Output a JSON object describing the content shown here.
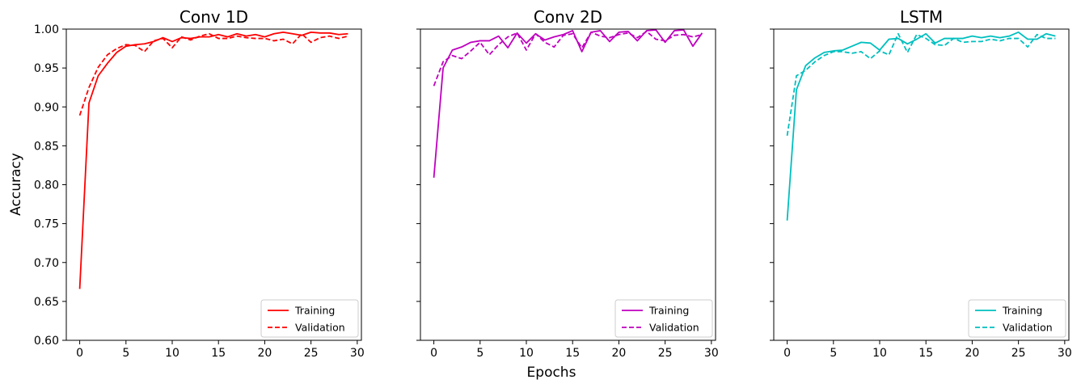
{
  "figure": {
    "xlabel": "Epochs",
    "ylabel": "Accuracy"
  },
  "chart_data": [
    {
      "type": "line",
      "title": "Conv 1D",
      "color": "#ff0000",
      "xlim": [
        -1.45,
        30.45
      ],
      "ylim": [
        0.6,
        1.0
      ],
      "xticks": [
        0,
        5,
        10,
        15,
        20,
        25,
        30
      ],
      "yticks": [
        "0.60",
        "0.65",
        "0.70",
        "0.75",
        "0.80",
        "0.85",
        "0.90",
        "0.95",
        "1.00"
      ],
      "yticklabels_visible": true,
      "legend_position": "lower right",
      "x": [
        0,
        1,
        2,
        3,
        4,
        5,
        6,
        7,
        8,
        9,
        10,
        11,
        12,
        13,
        14,
        15,
        16,
        17,
        18,
        19,
        20,
        21,
        22,
        23,
        24,
        25,
        26,
        27,
        28,
        29
      ],
      "series": [
        {
          "name": "Training",
          "linestyle": "solid",
          "values": [
            0.666,
            0.905,
            0.94,
            0.956,
            0.97,
            0.978,
            0.98,
            0.981,
            0.984,
            0.989,
            0.984,
            0.989,
            0.988,
            0.99,
            0.99,
            0.993,
            0.99,
            0.994,
            0.991,
            0.993,
            0.99,
            0.994,
            0.996,
            0.994,
            0.992,
            0.996,
            0.995,
            0.995,
            0.993,
            0.994
          ]
        },
        {
          "name": "Validation",
          "linestyle": "dashed",
          "values": [
            0.889,
            0.925,
            0.951,
            0.967,
            0.975,
            0.98,
            0.979,
            0.971,
            0.985,
            0.988,
            0.976,
            0.99,
            0.986,
            0.991,
            0.994,
            0.988,
            0.988,
            0.991,
            0.989,
            0.988,
            0.988,
            0.985,
            0.987,
            0.981,
            0.994,
            0.983,
            0.989,
            0.991,
            0.988,
            0.991
          ]
        }
      ]
    },
    {
      "type": "line",
      "title": "Conv 2D",
      "color": "#bf00bf",
      "xlim": [
        -1.45,
        30.45
      ],
      "ylim": [
        0.6,
        1.0
      ],
      "xticks": [
        0,
        5,
        10,
        15,
        20,
        25,
        30
      ],
      "yticks": [
        "0.60",
        "0.65",
        "0.70",
        "0.75",
        "0.80",
        "0.85",
        "0.90",
        "0.95",
        "1.00"
      ],
      "yticklabels_visible": false,
      "legend_position": "lower right",
      "x": [
        0,
        1,
        2,
        3,
        4,
        5,
        6,
        7,
        8,
        9,
        10,
        11,
        12,
        13,
        14,
        15,
        16,
        17,
        18,
        19,
        20,
        21,
        22,
        23,
        24,
        25,
        26,
        27,
        28,
        29
      ],
      "series": [
        {
          "name": "Training",
          "linestyle": "solid",
          "values": [
            0.809,
            0.95,
            0.973,
            0.977,
            0.983,
            0.985,
            0.985,
            0.991,
            0.976,
            0.995,
            0.982,
            0.994,
            0.986,
            0.99,
            0.993,
            0.998,
            0.971,
            0.996,
            0.998,
            0.984,
            0.996,
            0.997,
            0.985,
            0.998,
            0.999,
            0.983,
            0.998,
            0.999,
            0.978,
            0.995
          ]
        },
        {
          "name": "Validation",
          "linestyle": "dashed",
          "values": [
            0.927,
            0.958,
            0.966,
            0.962,
            0.972,
            0.983,
            0.967,
            0.98,
            0.99,
            0.995,
            0.973,
            0.994,
            0.983,
            0.977,
            0.992,
            0.994,
            0.976,
            0.996,
            0.991,
            0.989,
            0.993,
            0.995,
            0.989,
            0.997,
            0.987,
            0.985,
            0.992,
            0.993,
            0.99,
            0.993
          ]
        }
      ]
    },
    {
      "type": "line",
      "title": "LSTM",
      "color": "#00bfbf",
      "xlim": [
        -1.45,
        30.45
      ],
      "ylim": [
        0.6,
        1.0
      ],
      "xticks": [
        0,
        5,
        10,
        15,
        20,
        25,
        30
      ],
      "yticks": [
        "0.60",
        "0.65",
        "0.70",
        "0.75",
        "0.80",
        "0.85",
        "0.90",
        "0.95",
        "1.00"
      ],
      "yticklabels_visible": false,
      "legend_position": "lower right",
      "x": [
        0,
        1,
        2,
        3,
        4,
        5,
        6,
        7,
        8,
        9,
        10,
        11,
        12,
        13,
        14,
        15,
        16,
        17,
        18,
        19,
        20,
        21,
        22,
        23,
        24,
        25,
        26,
        27,
        28,
        29
      ],
      "series": [
        {
          "name": "Training",
          "linestyle": "solid",
          "values": [
            0.754,
            0.922,
            0.953,
            0.963,
            0.97,
            0.972,
            0.973,
            0.978,
            0.983,
            0.982,
            0.973,
            0.987,
            0.988,
            0.981,
            0.987,
            0.994,
            0.982,
            0.988,
            0.988,
            0.988,
            0.991,
            0.989,
            0.991,
            0.989,
            0.991,
            0.996,
            0.987,
            0.987,
            0.994,
            0.991
          ]
        },
        {
          "name": "Validation",
          "linestyle": "dashed",
          "values": [
            0.863,
            0.94,
            0.947,
            0.958,
            0.966,
            0.971,
            0.971,
            0.969,
            0.971,
            0.962,
            0.972,
            0.967,
            0.994,
            0.97,
            0.993,
            0.988,
            0.98,
            0.979,
            0.988,
            0.983,
            0.984,
            0.984,
            0.987,
            0.985,
            0.988,
            0.988,
            0.977,
            0.993,
            0.988,
            0.988
          ]
        }
      ]
    }
  ]
}
